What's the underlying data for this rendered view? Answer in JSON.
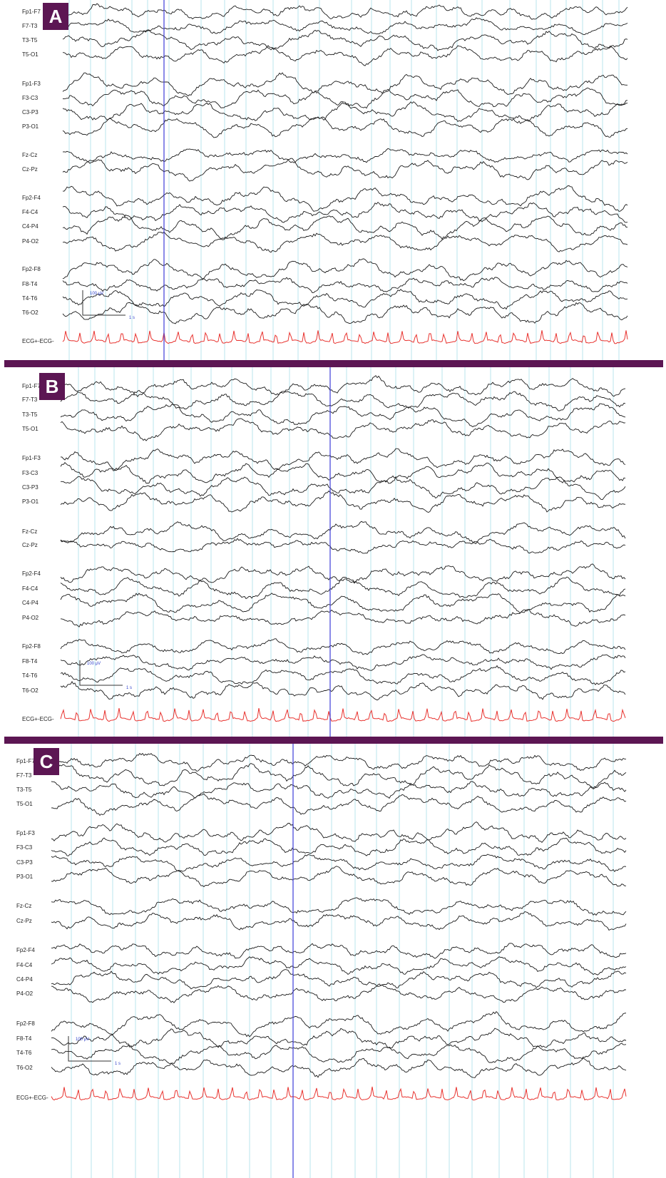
{
  "panels": [
    {
      "label": "A",
      "scale_amplitude": "100 μV",
      "scale_time": "1 s"
    },
    {
      "label": "B",
      "scale_amplitude": "100 μV",
      "scale_time": "1 s"
    },
    {
      "label": "C",
      "scale_amplitude": "100 μV",
      "scale_time": "1 s"
    }
  ],
  "channels": [
    "Fp1-F7",
    "F7-T3",
    "T3-T5",
    "T5-O1",
    "Fp1-F3",
    "F3-C3",
    "C3-P3",
    "P3-O1",
    "Fz-Cz",
    "Cz-Pz",
    "Fp2-F4",
    "F4-C4",
    "C4-P4",
    "P4-O2",
    "Fp2-F8",
    "F8-T4",
    "T4-T6",
    "T6-O2",
    "ECG+-ECG-"
  ],
  "colors": {
    "trace": "#1a1a1a",
    "ecg": "#e8322e",
    "grid": "#b9e4ee",
    "cursor": "#3c3cd8",
    "separator": "#5c1653"
  }
}
